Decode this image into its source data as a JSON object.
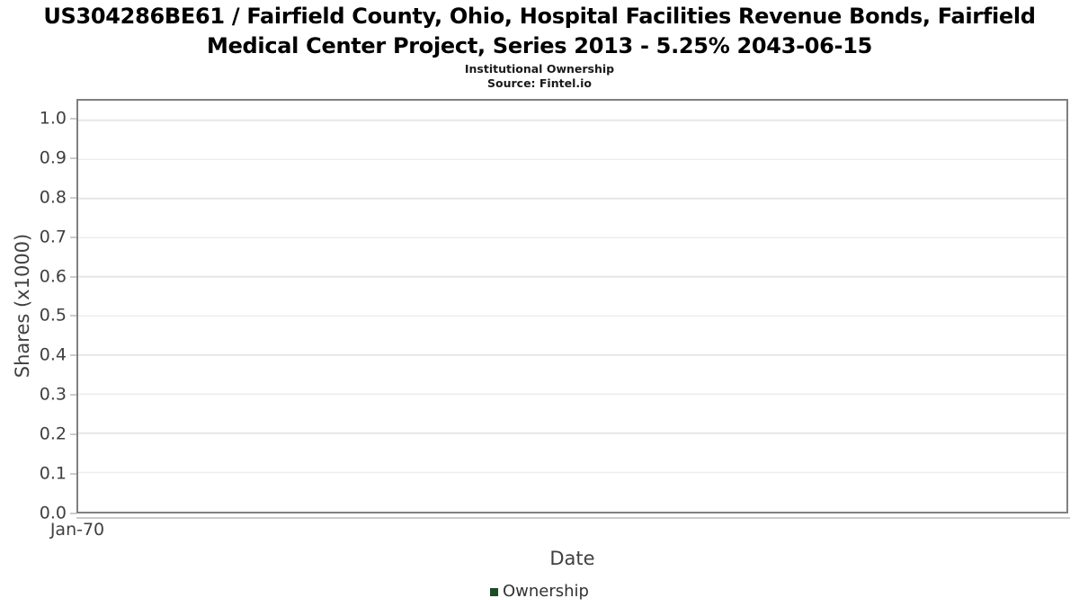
{
  "chart_data": {
    "type": "column",
    "title": "US304286BE61 / Fairfield County, Ohio, Hospital Facilities Revenue Bonds, Fairfield\nMedical Center Project, Series 2013 - 5.25% 2043-06-15",
    "subtitle": "Institutional Ownership",
    "source": "Source: Fintel.io",
    "xlabel": "Date",
    "ylabel": "Shares (x1000)",
    "xticks": [
      "Jan-70"
    ],
    "yticks": [
      0.0,
      0.1,
      0.2,
      0.3,
      0.4,
      0.5,
      0.6,
      0.7,
      0.8,
      0.9,
      1.0
    ],
    "ytick_labels": [
      "0.0",
      "0.1",
      "0.2",
      "0.3",
      "0.4",
      "0.5",
      "0.6",
      "0.7",
      "0.8",
      "0.9",
      "1.0"
    ],
    "ylim": [
      0,
      1.05
    ],
    "grid": "horizontal-only",
    "legend_position": "bottom-center",
    "series": [
      {
        "name": "Ownership",
        "color": "#1e4b28",
        "x": [],
        "values": []
      }
    ],
    "colors": {
      "series_ownership": "#1e4b28",
      "plot_border": "#808080",
      "gridline": "#e6e6e6",
      "tick_text": "#404040",
      "title_text": "#000000"
    }
  }
}
